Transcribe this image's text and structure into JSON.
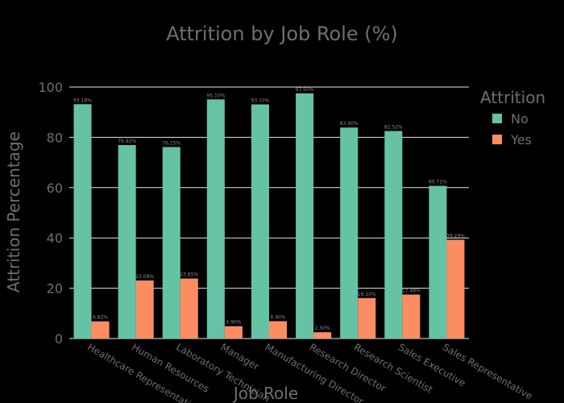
{
  "chart_data": {
    "type": "bar",
    "title": "Attrition by Job Role (%)",
    "xlabel": "Job Role",
    "ylabel": "Attrition Percentage",
    "ylim": [
      0,
      100
    ],
    "yticks": [
      0,
      20,
      40,
      60,
      80,
      100
    ],
    "grid": true,
    "legend_placement": "top-right",
    "legend_title": "Attrition",
    "categories": [
      "Healthcare Representative",
      "Human Resources",
      "Laboratory Technician",
      "Manager",
      "Manufacturing Director",
      "Research Director",
      "Research Scientist",
      "Sales Executive",
      "Sales Representative"
    ],
    "series": [
      {
        "name": "No",
        "color": "#66c2a5",
        "values": [
          93.18,
          76.92,
          76.15,
          95.1,
          93.1,
          97.5,
          83.9,
          82.52,
          60.71
        ],
        "labels": [
          "93.18%",
          "76.92%",
          "76.15%",
          "95.10%",
          "93.10%",
          "97.50%",
          "83.90%",
          "82.52%",
          "60.71%"
        ]
      },
      {
        "name": "Yes",
        "color": "#fc8d62",
        "values": [
          6.82,
          23.08,
          23.85,
          4.9,
          6.9,
          2.5,
          16.1,
          17.48,
          39.29
        ],
        "labels": [
          "6.82%",
          "23.08%",
          "23.85%",
          "4.90%",
          "6.90%",
          "2.50%",
          "16.10%",
          "17.48%",
          "39.29%"
        ]
      }
    ]
  }
}
